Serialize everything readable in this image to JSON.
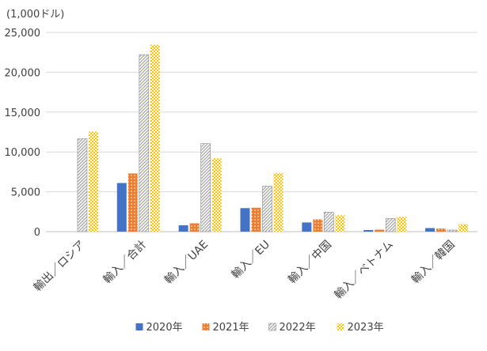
{
  "chart_data": {
    "type": "bar",
    "unit_label": "(1,000ドル)",
    "categories": [
      "輸出／ロシア",
      "輸入／合計",
      "輸入／UAE",
      "輸入／EU",
      "輸入／中国",
      "輸入／ベトナム",
      "輸入／韓国"
    ],
    "series": [
      {
        "name": "2020年",
        "color": "#4472C4",
        "pattern": "solid",
        "values": [
          0,
          6100,
          800,
          2950,
          1150,
          200,
          450
        ]
      },
      {
        "name": "2021年",
        "color": "#ED7D31",
        "pattern": "dots",
        "values": [
          0,
          7300,
          1050,
          3000,
          1550,
          250,
          400
        ]
      },
      {
        "name": "2022年",
        "color": "#A5A5A5",
        "pattern": "diagonal",
        "values": [
          11650,
          22200,
          11050,
          5700,
          2450,
          1650,
          200
        ]
      },
      {
        "name": "2023年",
        "color": "#FFC000",
        "pattern": "checker",
        "values": [
          12550,
          23450,
          9200,
          7350,
          2050,
          1850,
          950
        ]
      }
    ],
    "ylim": [
      0,
      25000
    ],
    "yticks": [
      0,
      5000,
      10000,
      15000,
      20000,
      25000
    ],
    "ytick_labels": [
      "0",
      "5,000",
      "10,000",
      "15,000",
      "20,000",
      "25,000"
    ],
    "grid": true,
    "legend_position": "bottom"
  }
}
